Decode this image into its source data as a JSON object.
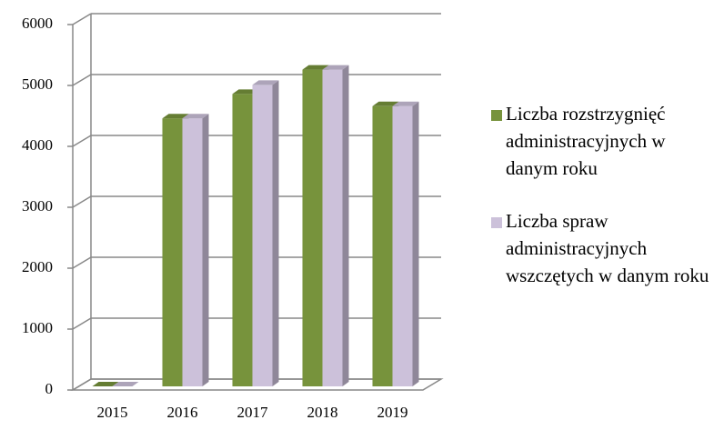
{
  "chart_data": {
    "type": "bar3d",
    "categories": [
      "2015",
      "2016",
      "2017",
      "2018",
      "2019"
    ],
    "series": [
      {
        "name": "Liczba rozstrzygnięć administracyjnych w danym roku",
        "color": "#77933c",
        "values": [
          0,
          4400,
          4800,
          5200,
          4600
        ]
      },
      {
        "name": "Liczba spraw administracyjnych wszczętych w danym roku",
        "color": "#ccc1da",
        "values": [
          0,
          4400,
          4950,
          5200,
          4600
        ]
      }
    ],
    "ylim": [
      0,
      6000
    ],
    "yticks": [
      0,
      1000,
      2000,
      3000,
      4000,
      5000,
      6000
    ],
    "grid": true,
    "legend": "right"
  }
}
